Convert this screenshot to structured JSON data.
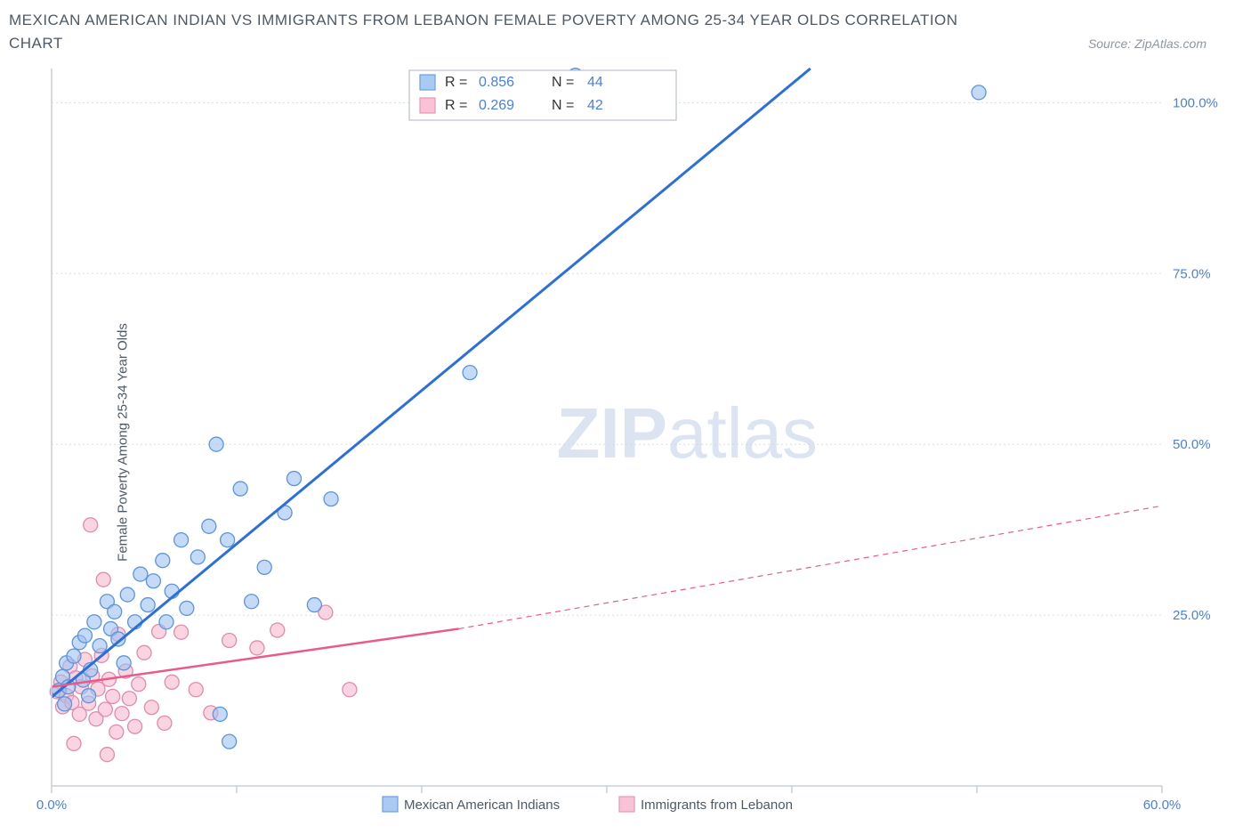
{
  "title": "MEXICAN AMERICAN INDIAN VS IMMIGRANTS FROM LEBANON FEMALE POVERTY AMONG 25-34 YEAR OLDS CORRELATION CHART",
  "source": "Source: ZipAtlas.com",
  "y_axis_label": "Female Poverty Among 25-34 Year Olds",
  "watermark_a": "ZIP",
  "watermark_b": "atlas",
  "chart": {
    "type": "scatter",
    "background": "#ffffff",
    "grid_color": "#d7dde2",
    "axis_color": "#c7cfd6",
    "xlim": [
      0,
      60
    ],
    "ylim": [
      0,
      105
    ],
    "x_ticks": [
      0,
      10,
      20,
      30,
      40,
      50,
      60
    ],
    "x_tick_labels": {
      "0": "0.0%",
      "60": "60.0%"
    },
    "y_ticks": [
      25,
      50,
      75,
      100
    ],
    "y_tick_labels": {
      "25": "25.0%",
      "50": "50.0%",
      "75": "75.0%",
      "100": "100.0%"
    },
    "series": [
      {
        "name": "Mexican American Indians",
        "color_fill": "#9ec2f0",
        "color_stroke": "#5a95df",
        "trend_color": "#2c6fd8",
        "trend": {
          "x1": 0,
          "y1": 13,
          "x2": 41,
          "y2": 105
        },
        "R": "0.856",
        "N": "44",
        "points": [
          [
            0.4,
            14
          ],
          [
            0.6,
            16
          ],
          [
            0.7,
            12
          ],
          [
            0.8,
            18
          ],
          [
            0.9,
            14.5
          ],
          [
            1.2,
            19
          ],
          [
            1.5,
            21
          ],
          [
            1.7,
            15.5
          ],
          [
            1.8,
            22
          ],
          [
            2.1,
            17
          ],
          [
            2.3,
            24
          ],
          [
            2.6,
            20.5
          ],
          [
            3.0,
            27
          ],
          [
            3.2,
            23
          ],
          [
            3.4,
            25.5
          ],
          [
            3.6,
            21.5
          ],
          [
            4.1,
            28
          ],
          [
            4.5,
            24
          ],
          [
            4.8,
            31
          ],
          [
            5.2,
            26.5
          ],
          [
            5.5,
            30
          ],
          [
            6.0,
            33
          ],
          [
            6.2,
            24
          ],
          [
            6.5,
            28.5
          ],
          [
            7.0,
            36
          ],
          [
            7.3,
            26
          ],
          [
            7.9,
            33.5
          ],
          [
            8.5,
            38
          ],
          [
            9.1,
            10.5
          ],
          [
            9.5,
            36
          ],
          [
            10.2,
            43.5
          ],
          [
            10.8,
            27
          ],
          [
            11.5,
            32
          ],
          [
            12.6,
            40
          ],
          [
            13.1,
            45
          ],
          [
            8.9,
            50
          ],
          [
            14.2,
            26.5
          ],
          [
            15.1,
            42
          ],
          [
            9.6,
            6.5
          ],
          [
            22.6,
            60.5
          ],
          [
            28.3,
            104
          ],
          [
            50.1,
            101.5
          ],
          [
            3.9,
            18
          ],
          [
            2.0,
            13.2
          ]
        ]
      },
      {
        "name": "Immigrants from Lebanon",
        "color_fill": "#f7b8cd",
        "color_stroke": "#e28aab",
        "trend_color": "#e85a8b",
        "trend_solid": {
          "x1": 0,
          "y1": 14.5,
          "x2": 22,
          "y2": 23
        },
        "trend_dash": {
          "x1": 22,
          "y1": 23,
          "x2": 60,
          "y2": 41
        },
        "R": "0.269",
        "N": "42",
        "points": [
          [
            0.3,
            13.8
          ],
          [
            0.5,
            15.2
          ],
          [
            0.6,
            11.6
          ],
          [
            0.8,
            13.2
          ],
          [
            1.0,
            17.5
          ],
          [
            1.1,
            12.2
          ],
          [
            1.3,
            15.8
          ],
          [
            1.5,
            10.5
          ],
          [
            1.6,
            14.5
          ],
          [
            1.8,
            18.5
          ],
          [
            2.0,
            12.1
          ],
          [
            2.2,
            16.1
          ],
          [
            2.4,
            9.8
          ],
          [
            2.5,
            14.2
          ],
          [
            2.7,
            19.1
          ],
          [
            2.9,
            11.2
          ],
          [
            3.1,
            15.6
          ],
          [
            3.3,
            13.1
          ],
          [
            3.5,
            7.9
          ],
          [
            3.6,
            22.2
          ],
          [
            3.8,
            10.6
          ],
          [
            4.0,
            16.8
          ],
          [
            4.2,
            12.8
          ],
          [
            4.5,
            8.7
          ],
          [
            4.7,
            14.9
          ],
          [
            5.0,
            19.5
          ],
          [
            2.1,
            38.2
          ],
          [
            2.8,
            30.2
          ],
          [
            5.4,
            11.5
          ],
          [
            5.8,
            22.6
          ],
          [
            6.1,
            9.2
          ],
          [
            6.5,
            15.2
          ],
          [
            7.0,
            22.5
          ],
          [
            7.8,
            14.1
          ],
          [
            8.6,
            10.7
          ],
          [
            9.6,
            21.3
          ],
          [
            11.1,
            20.2
          ],
          [
            12.2,
            22.8
          ],
          [
            14.8,
            25.4
          ],
          [
            16.1,
            14.1
          ],
          [
            3.0,
            4.6
          ],
          [
            1.2,
            6.2
          ]
        ]
      }
    ]
  },
  "top_legend": {
    "rows": [
      {
        "swatch": "blue",
        "r_label": "R =",
        "r_val": "0.856",
        "n_label": "N =",
        "n_val": "44"
      },
      {
        "swatch": "pink",
        "r_label": "R =",
        "r_val": "0.269",
        "n_label": "N =",
        "n_val": "42"
      }
    ]
  },
  "bottom_legend": [
    {
      "swatch": "blue",
      "label": "Mexican American Indians"
    },
    {
      "swatch": "pink",
      "label": "Immigrants from Lebanon"
    }
  ]
}
